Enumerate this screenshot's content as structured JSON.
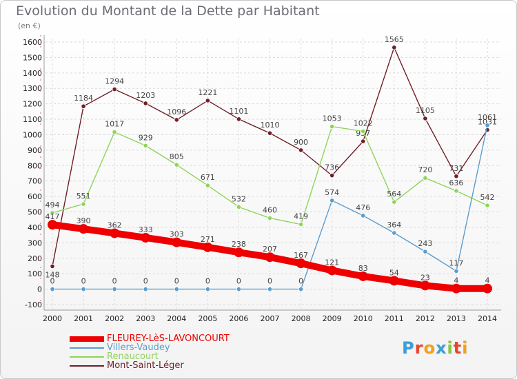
{
  "header": {
    "title": "Evolution du Montant de la Dette par Habitant",
    "unit": "(en €)"
  },
  "logo": {
    "letters": [
      "P",
      "r",
      "o",
      "x",
      "i",
      "t",
      "i"
    ],
    "colors": [
      "#3aa0d8",
      "#e8452c",
      "#f2a218",
      "#3aa0d8",
      "#8cc43e",
      "#e8452c",
      "#f2a218"
    ]
  },
  "chart_data": {
    "type": "line",
    "title": "Evolution du Montant de la Dette par Habitant",
    "xlabel": "",
    "ylabel": "(en €)",
    "ylim": [
      -100,
      1600
    ],
    "yticks": [
      -100,
      0,
      100,
      200,
      300,
      400,
      500,
      600,
      700,
      800,
      900,
      1000,
      1100,
      1200,
      1300,
      1400,
      1500,
      1600
    ],
    "x": [
      "2000",
      "2001",
      "2002",
      "2003",
      "2004",
      "2005",
      "2006",
      "2007",
      "2008",
      "2009",
      "2010",
      "2011",
      "2012",
      "2013",
      "2014"
    ],
    "grid": true,
    "legend": "bottom-left",
    "series": [
      {
        "name": "Mont-Saint-Léger",
        "color": "#6e1f28",
        "values": [
          148,
          1184,
          1294,
          1203,
          1096,
          1221,
          1101,
          1010,
          900,
          736,
          957,
          1565,
          1105,
          731,
          1031
        ],
        "labels": [
          "148",
          "1184",
          "1294",
          "1203",
          "1096",
          "1221",
          "1101",
          "1010",
          "900",
          "736",
          "957",
          "1565",
          "1105",
          "731",
          "1031"
        ]
      },
      {
        "name": "Renaucourt",
        "color": "#8fd45a",
        "values": [
          494,
          551,
          1017,
          929,
          805,
          671,
          532,
          460,
          419,
          1053,
          1022,
          564,
          720,
          636,
          542
        ],
        "labels": [
          "494",
          "551",
          "1017",
          "929",
          "805",
          "671",
          "532",
          "460",
          "419",
          "1053",
          "1022",
          "564",
          "720",
          "636",
          "542"
        ]
      },
      {
        "name": "Villers-Vaudey",
        "color": "#5b9ccc",
        "values": [
          0,
          0,
          0,
          0,
          0,
          0,
          0,
          0,
          0,
          574,
          476,
          364,
          243,
          117,
          1061
        ],
        "labels": [
          "0",
          "0",
          "0",
          "0",
          "0",
          "0",
          "0",
          "0",
          "0",
          "574",
          "476",
          "364",
          "243",
          "117",
          "1061"
        ]
      },
      {
        "name": "FLEUREY-LèS-LAVONCOURT",
        "color": "#ee0000",
        "values": [
          417,
          390,
          362,
          333,
          303,
          271,
          238,
          207,
          167,
          121,
          83,
          54,
          23,
          4,
          4
        ],
        "labels": [
          "417",
          "390",
          "362",
          "333",
          "303",
          "271",
          "238",
          "207",
          "167",
          "121",
          "83",
          "54",
          "23",
          "4",
          "4"
        ]
      }
    ]
  },
  "legend_items": [
    {
      "label": "FLEUREY-LèS-LAVONCOURT",
      "color": "#ee0000",
      "thick": true
    },
    {
      "label": "Villers-Vaudey",
      "color": "#5b9ccc",
      "thick": false
    },
    {
      "label": "Renaucourt",
      "color": "#8fd45a",
      "thick": false
    },
    {
      "label": "Mont-Saint-Léger",
      "color": "#6e1f28",
      "thick": false
    }
  ]
}
